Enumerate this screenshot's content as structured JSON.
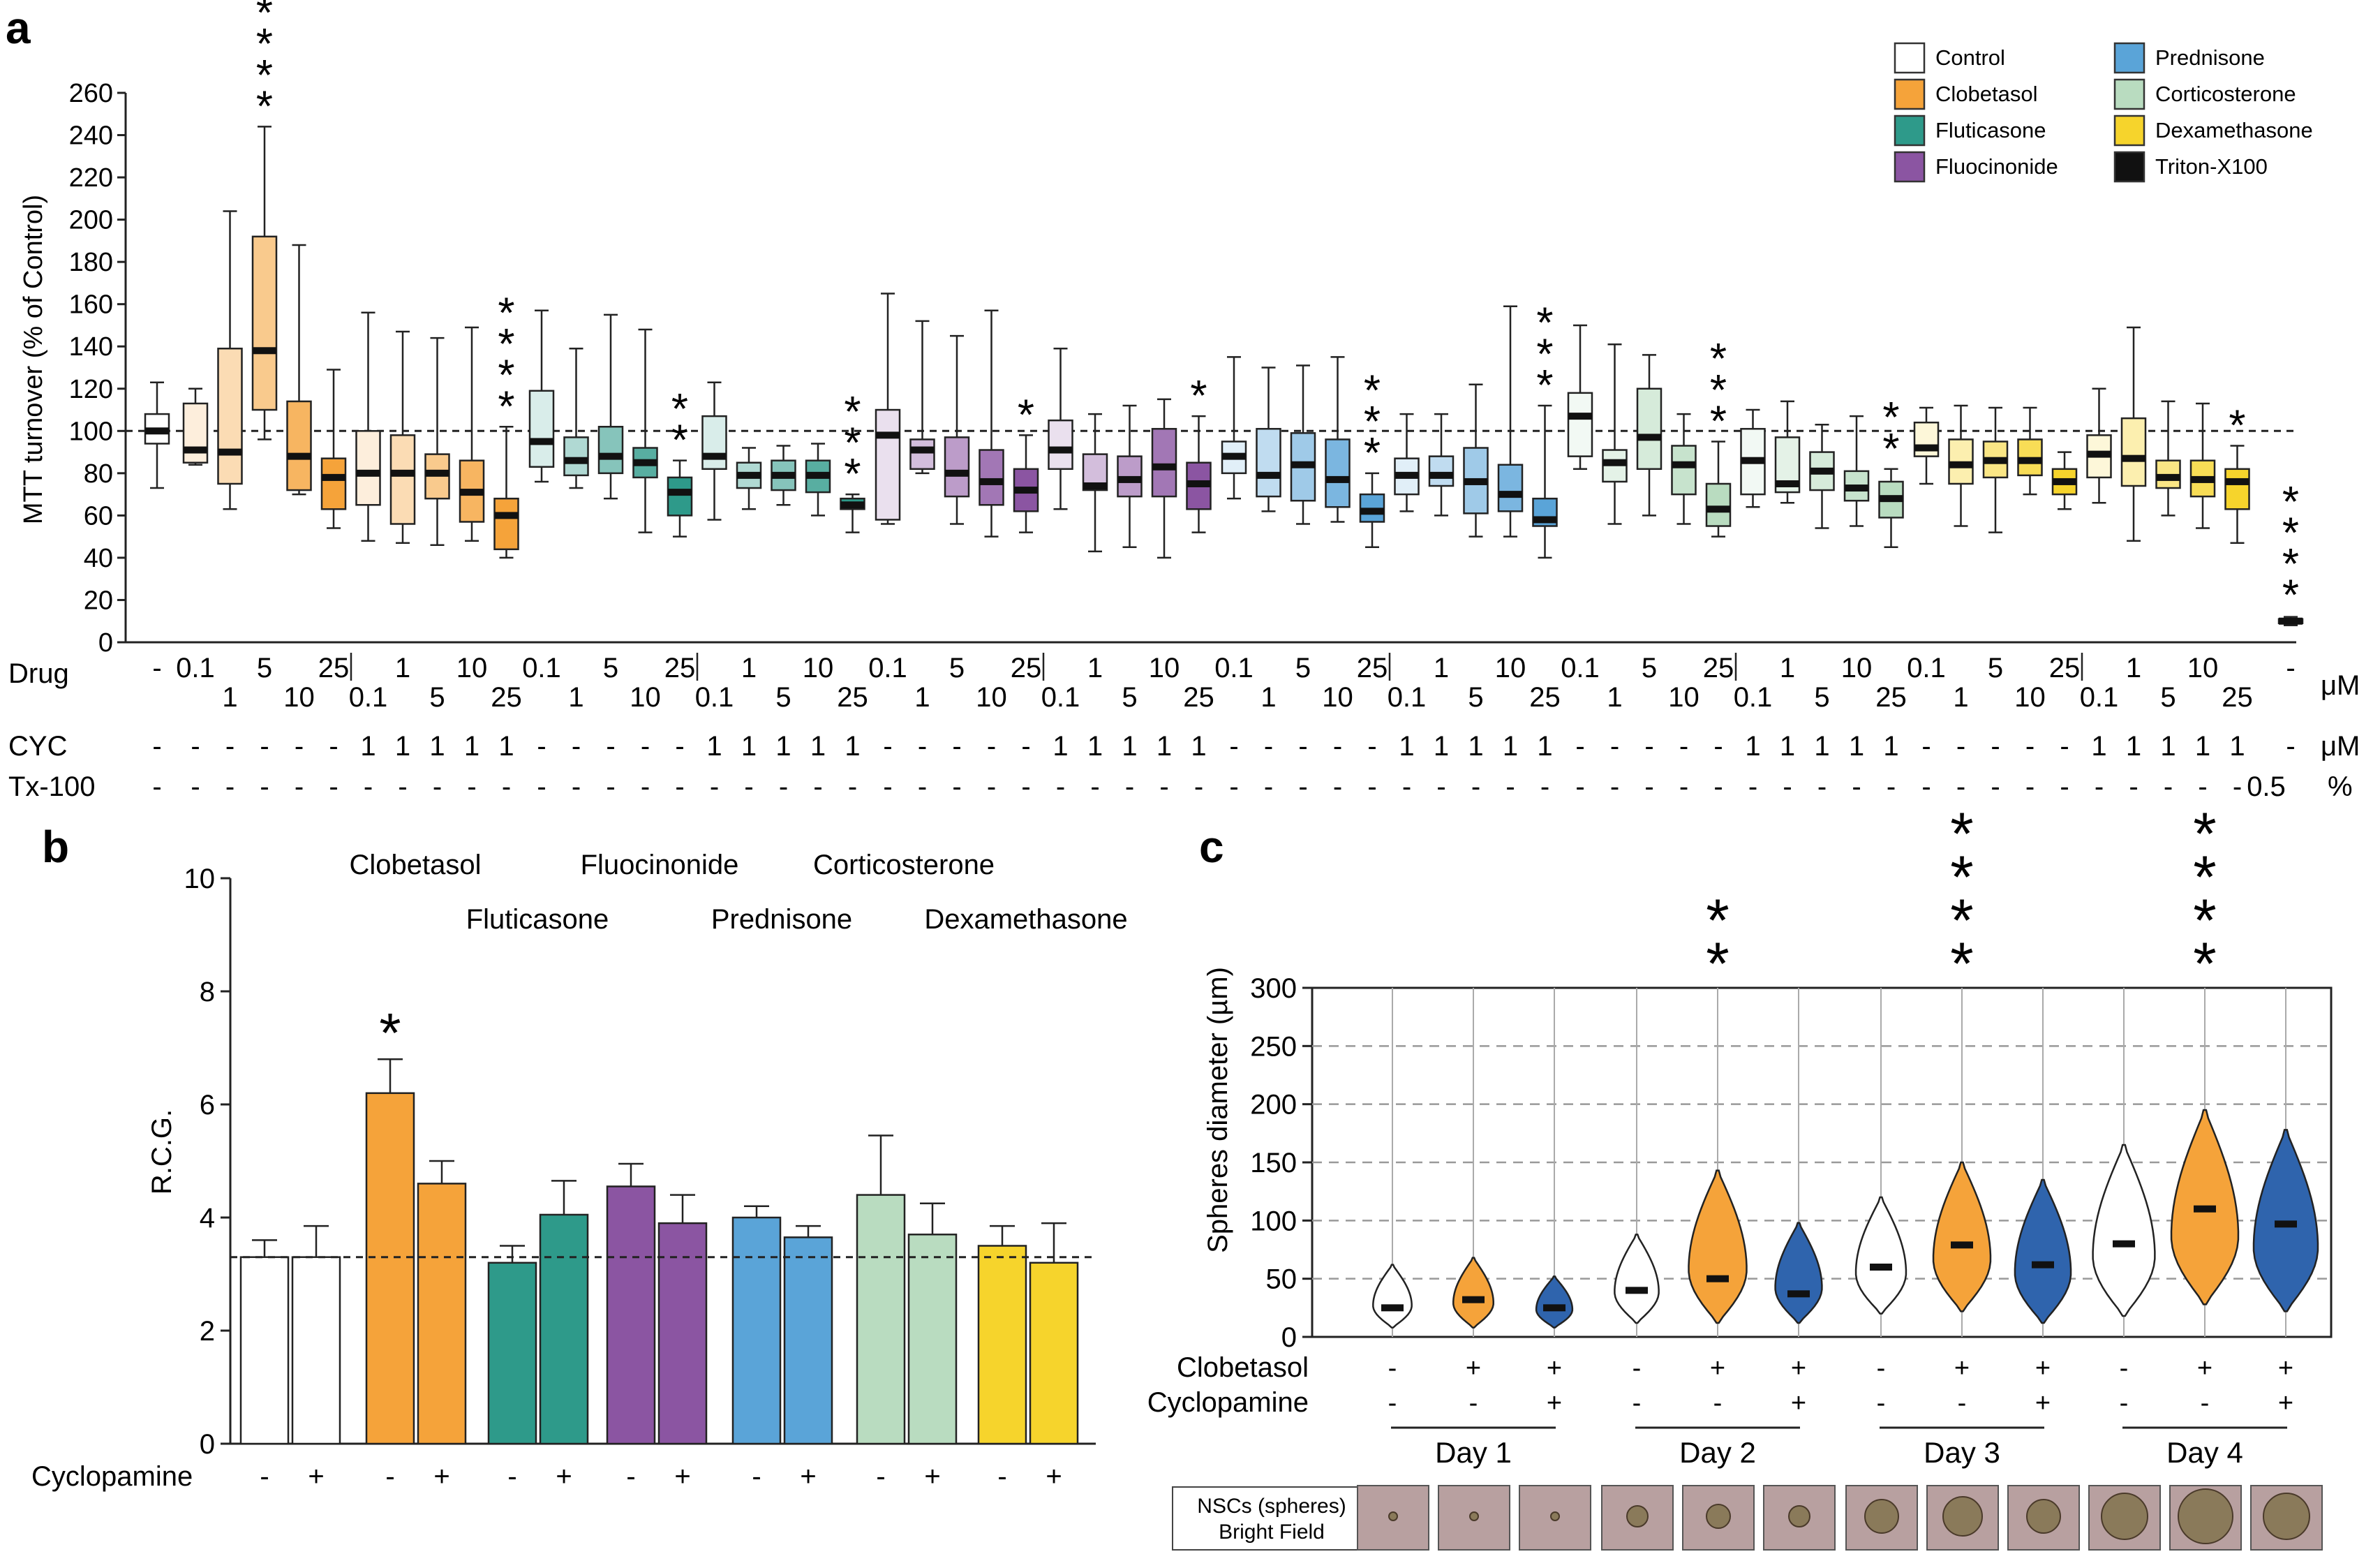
{
  "colors": {
    "control": "#ffffff",
    "clobetasol": "#f5a33a",
    "fluticasone": "#2e9a8a",
    "fluocinonide": "#8b55a2",
    "prednisone": "#5aa4d8",
    "corticosterone": "#b9dcc0",
    "dexamethasone": "#f6d42c",
    "triton": "#111111",
    "blue_violin": "#2f64ad"
  },
  "panels": {
    "a": "a",
    "b": "b",
    "c": "c"
  },
  "legend": [
    {
      "label": "Control",
      "color": "#ffffff"
    },
    {
      "label": "Clobetasol",
      "color": "#f5a33a"
    },
    {
      "label": "Fluticasone",
      "color": "#2e9a8a"
    },
    {
      "label": "Fluocinonide",
      "color": "#8b55a2"
    },
    {
      "label": "Prednisone",
      "color": "#5aa4d8"
    },
    {
      "label": "Corticosterone",
      "color": "#b9dcc0"
    },
    {
      "label": "Dexamethasone",
      "color": "#f6d42c"
    },
    {
      "label": "Triton-X100",
      "color": "#111111"
    }
  ],
  "chart_data": [
    {
      "panel": "a",
      "type": "box",
      "ylabel": "MTT turnover (% of Control)",
      "ylim": [
        0,
        260
      ],
      "yticks": [
        0,
        20,
        40,
        60,
        80,
        100,
        120,
        140,
        160,
        180,
        200,
        220,
        240,
        260
      ],
      "reference_line": 100,
      "row_labels": {
        "drug": "Drug",
        "cyc": "CYC",
        "tx": "Tx-100"
      },
      "units": {
        "drug": "μM",
        "cyc": "μM",
        "tx": "%"
      },
      "drug_doses": [
        "0.1",
        "1",
        "5",
        "10",
        "25",
        "0.1",
        "1",
        "5",
        "10",
        "25"
      ],
      "cyc_values": [
        "-",
        "-",
        "-",
        "-",
        "-",
        "1",
        "1",
        "1",
        "1",
        "1"
      ],
      "tx_values": [
        "-",
        "-",
        "-",
        "-",
        "-",
        "-",
        "-",
        "-",
        "-",
        "-"
      ],
      "control_box": {
        "drug": "-",
        "cyc": "-",
        "tx": "-",
        "stats": [
          73,
          94,
          100,
          108,
          123
        ]
      },
      "triton_box": {
        "drug": "-",
        "cyc": "-",
        "tx": "0.5",
        "stats": [
          8,
          9,
          10,
          11,
          12
        ],
        "sig": "****"
      },
      "series": [
        {
          "name": "Clobetasol",
          "color": "#f5a33a",
          "stats": [
            [
              84,
              85,
              91,
              113,
              120
            ],
            [
              63,
              75,
              90,
              139,
              204
            ],
            [
              96,
              110,
              138,
              192,
              244
            ],
            [
              70,
              72,
              88,
              114,
              188
            ],
            [
              54,
              63,
              78,
              87,
              129
            ],
            [
              48,
              65,
              80,
              100,
              156
            ],
            [
              47,
              56,
              80,
              98,
              147
            ],
            [
              46,
              68,
              80,
              89,
              144
            ],
            [
              48,
              57,
              71,
              86,
              149
            ],
            [
              40,
              44,
              60,
              68,
              102
            ]
          ],
          "sig": [
            "",
            "",
            "****",
            "",
            "",
            "",
            "",
            "",
            "",
            "****"
          ]
        },
        {
          "name": "Fluticasone",
          "color": "#2e9a8a",
          "stats": [
            [
              76,
              83,
              95,
              119,
              157
            ],
            [
              73,
              79,
              86,
              97,
              139
            ],
            [
              68,
              80,
              88,
              102,
              155
            ],
            [
              52,
              78,
              85,
              92,
              148
            ],
            [
              50,
              60,
              71,
              78,
              86
            ],
            [
              58,
              82,
              88,
              107,
              123
            ],
            [
              63,
              73,
              79,
              85,
              92
            ],
            [
              65,
              72,
              79,
              86,
              93
            ],
            [
              60,
              71,
              79,
              86,
              94
            ],
            [
              52,
              63,
              65,
              68,
              70
            ]
          ],
          "sig": [
            "",
            "",
            "",
            "",
            "**",
            "",
            "",
            "",
            "",
            "***"
          ]
        },
        {
          "name": "Fluocinonide",
          "color": "#8b55a2",
          "stats": [
            [
              56,
              58,
              98,
              110,
              165
            ],
            [
              80,
              82,
              91,
              96,
              152
            ],
            [
              56,
              69,
              80,
              97,
              145
            ],
            [
              50,
              65,
              76,
              91,
              157
            ],
            [
              52,
              62,
              72,
              82,
              98
            ],
            [
              63,
              82,
              91,
              105,
              139
            ],
            [
              43,
              72,
              74,
              89,
              108
            ],
            [
              45,
              69,
              77,
              88,
              112
            ],
            [
              40,
              69,
              83,
              101,
              115
            ],
            [
              52,
              63,
              75,
              85,
              107
            ]
          ],
          "sig": [
            "",
            "",
            "",
            "",
            "*",
            "",
            "",
            "",
            "",
            "*"
          ]
        },
        {
          "name": "Prednisone",
          "color": "#5aa4d8",
          "stats": [
            [
              68,
              80,
              88,
              95,
              135
            ],
            [
              62,
              69,
              79,
              101,
              130
            ],
            [
              56,
              67,
              84,
              99,
              131
            ],
            [
              57,
              64,
              77,
              96,
              135
            ],
            [
              45,
              57,
              62,
              70,
              80
            ],
            [
              62,
              70,
              79,
              87,
              108
            ],
            [
              60,
              74,
              79,
              88,
              108
            ],
            [
              50,
              61,
              76,
              92,
              122
            ],
            [
              50,
              62,
              70,
              84,
              159
            ],
            [
              40,
              55,
              58,
              68,
              112
            ]
          ],
          "sig": [
            "",
            "",
            "",
            "",
            "***",
            "",
            "",
            "",
            "",
            "***"
          ]
        },
        {
          "name": "Corticosterone",
          "color": "#b9dcc0",
          "stats": [
            [
              82,
              88,
              107,
              118,
              150
            ],
            [
              56,
              76,
              85,
              91,
              141
            ],
            [
              60,
              82,
              97,
              120,
              136
            ],
            [
              56,
              70,
              84,
              93,
              108
            ],
            [
              50,
              55,
              63,
              75,
              95
            ],
            [
              64,
              70,
              86,
              101,
              110
            ],
            [
              66,
              71,
              75,
              97,
              114
            ],
            [
              54,
              72,
              81,
              90,
              103
            ],
            [
              55,
              67,
              73,
              81,
              107
            ],
            [
              45,
              59,
              68,
              76,
              82
            ]
          ],
          "sig": [
            "",
            "",
            "",
            "",
            "***",
            "",
            "",
            "",
            "",
            "**"
          ]
        },
        {
          "name": "Dexamethasone",
          "color": "#f6d42c",
          "stats": [
            [
              75,
              88,
              92,
              104,
              111
            ],
            [
              55,
              75,
              84,
              96,
              112
            ],
            [
              52,
              78,
              86,
              95,
              111
            ],
            [
              70,
              79,
              86,
              96,
              111
            ],
            [
              63,
              70,
              76,
              82,
              90
            ],
            [
              66,
              78,
              89,
              98,
              120
            ],
            [
              48,
              74,
              87,
              106,
              149
            ],
            [
              60,
              73,
              78,
              86,
              114
            ],
            [
              54,
              69,
              77,
              86,
              113
            ],
            [
              47,
              63,
              76,
              82,
              93
            ]
          ],
          "sig": [
            "",
            "",
            "",
            "",
            "",
            "",
            "",
            "",
            "",
            "*"
          ]
        }
      ]
    },
    {
      "panel": "b",
      "type": "bar",
      "ylabel": "R.C.G.",
      "ylim": [
        0,
        10
      ],
      "yticks": [
        0,
        2,
        4,
        6,
        8,
        10
      ],
      "reference_line": 3.3,
      "xrow_label": "Cyclopamine",
      "cyclopamine": [
        "-",
        "+",
        "-",
        "+",
        "-",
        "+",
        "-",
        "+",
        "-",
        "+",
        "-",
        "+",
        "-",
        "+"
      ],
      "values": [
        3.3,
        3.3,
        6.2,
        4.6,
        3.2,
        4.05,
        4.55,
        3.9,
        4.0,
        3.65,
        4.4,
        3.7,
        3.5,
        3.2
      ],
      "errors": [
        0.3,
        0.55,
        0.6,
        0.4,
        0.3,
        0.6,
        0.4,
        0.5,
        0.2,
        0.2,
        1.05,
        0.55,
        0.35,
        0.7
      ],
      "colors": [
        "#ffffff",
        "#ffffff",
        "#f5a33a",
        "#f5a33a",
        "#2e9a8a",
        "#2e9a8a",
        "#8b55a2",
        "#8b55a2",
        "#5aa4d8",
        "#5aa4d8",
        "#b9dcc0",
        "#b9dcc0",
        "#f6d42c",
        "#f6d42c"
      ],
      "sig": [
        "",
        "",
        "*",
        "",
        "",
        "",
        "",
        "",
        "",
        "",
        "",
        "",
        "",
        ""
      ],
      "drug_labels_row1": [
        "Clobetasol",
        "Fluocinonide",
        "Corticosterone"
      ],
      "drug_labels_row2": [
        "Fluticasone",
        "Prednisone",
        "Dexamethasone"
      ]
    },
    {
      "panel": "c",
      "type": "violin",
      "ylabel": "Spheres diameter (µm)",
      "ylim": [
        0,
        300
      ],
      "yticks": [
        0,
        50,
        100,
        150,
        200,
        250,
        300
      ],
      "row_labels": {
        "clob": "Clobetasol",
        "cyc": "Cyclopamine"
      },
      "days": [
        "Day 1",
        "Day 2",
        "Day 3",
        "Day 4"
      ],
      "clobetasol": [
        "-",
        "+",
        "+"
      ],
      "cyclopamine": [
        "-",
        "-",
        "+"
      ],
      "groups": [
        [
          {
            "median": 25,
            "min": 8,
            "max": 62
          },
          {
            "median": 32,
            "min": 8,
            "max": 68
          },
          {
            "median": 25,
            "min": 8,
            "max": 52
          }
        ],
        [
          {
            "median": 40,
            "min": 12,
            "max": 88
          },
          {
            "median": 50,
            "min": 12,
            "max": 143
          },
          {
            "median": 37,
            "min": 12,
            "max": 98
          }
        ],
        [
          {
            "median": 60,
            "min": 20,
            "max": 120
          },
          {
            "median": 79,
            "min": 22,
            "max": 150
          },
          {
            "median": 62,
            "min": 12,
            "max": 135
          }
        ],
        [
          {
            "median": 80,
            "min": 18,
            "max": 165
          },
          {
            "median": 110,
            "min": 28,
            "max": 195
          },
          {
            "median": 97,
            "min": 22,
            "max": 178
          }
        ]
      ],
      "sig": [
        "",
        "**",
        "****",
        "****"
      ],
      "image_caption_line1": "NSCs (spheres)",
      "image_caption_line2": "Bright Field"
    }
  ]
}
